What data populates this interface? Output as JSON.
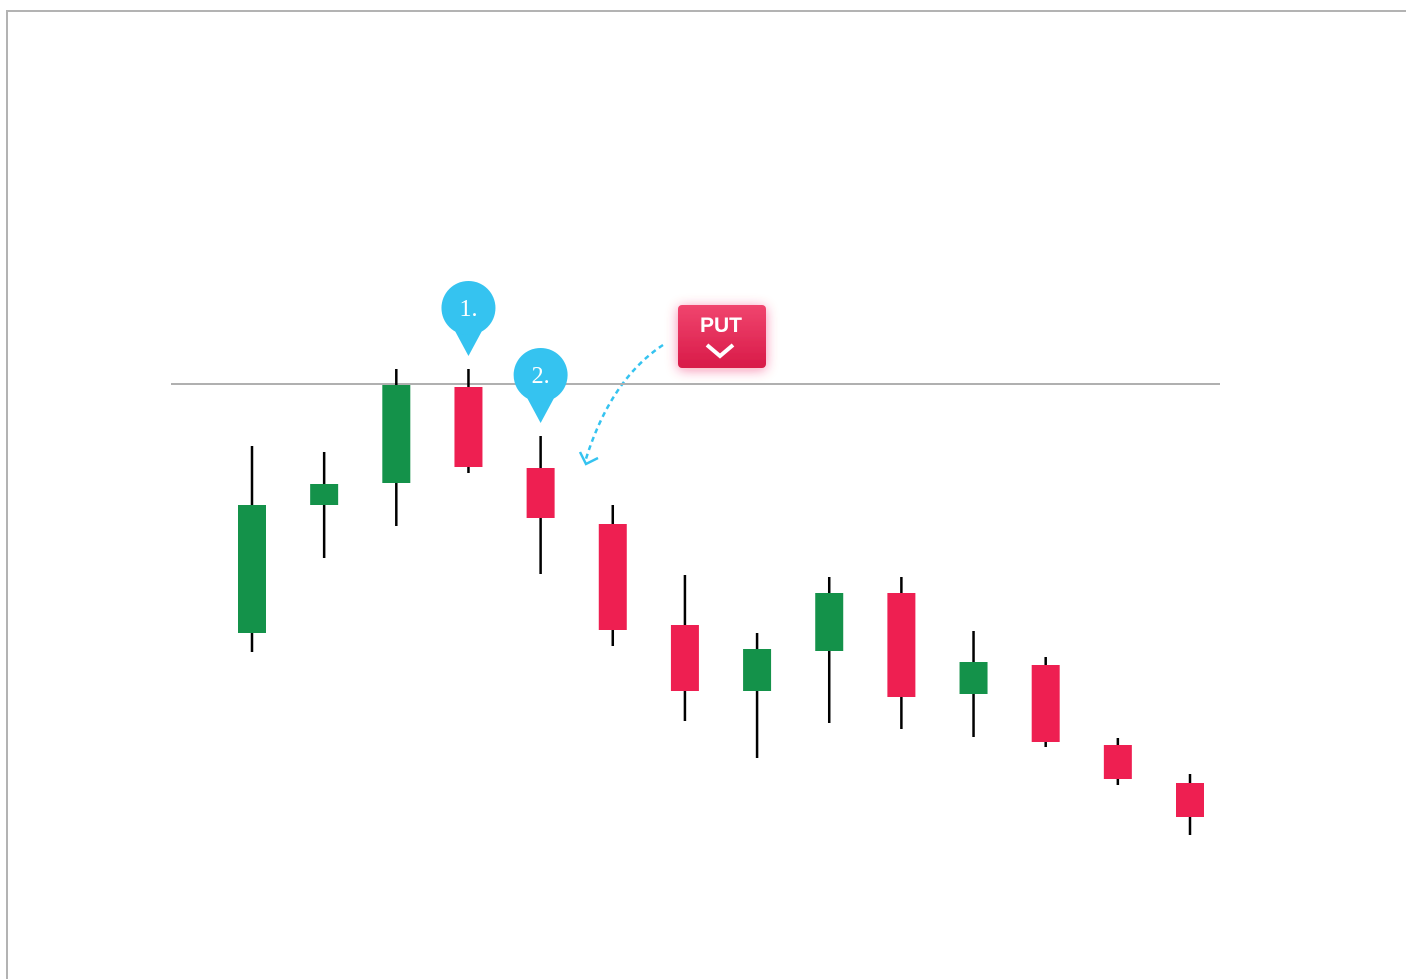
{
  "chart_data": {
    "type": "candlestick",
    "open": [
      36.7,
      49.5,
      51.7,
      61.3,
      53.2,
      47.6,
      37.5,
      30.9,
      34.9,
      40.7,
      30.6,
      33.5,
      25.5,
      21.7
    ],
    "high": [
      55.4,
      54.8,
      63.1,
      63.1,
      56.4,
      49.5,
      42.5,
      36.7,
      42.3,
      42.3,
      36.9,
      34.3,
      26.2,
      22.6
    ],
    "low": [
      34.8,
      44.2,
      47.4,
      52.7,
      42.6,
      35.4,
      27.9,
      24.2,
      27.7,
      27.1,
      26.3,
      25.3,
      21.5,
      16.5
    ],
    "close": [
      49.5,
      51.6,
      61.5,
      53.3,
      48.2,
      37.0,
      30.9,
      35.1,
      40.7,
      30.3,
      33.8,
      25.8,
      22.1,
      18.3
    ],
    "up_color": "#14924a",
    "down_color": "#ee1f51",
    "ylim": [
      0,
      100
    ],
    "level": 61.6,
    "annotations": [
      {
        "text": "1.",
        "candle": 3
      },
      {
        "text": "2.",
        "candle": 4
      }
    ],
    "button": "PUT"
  }
}
